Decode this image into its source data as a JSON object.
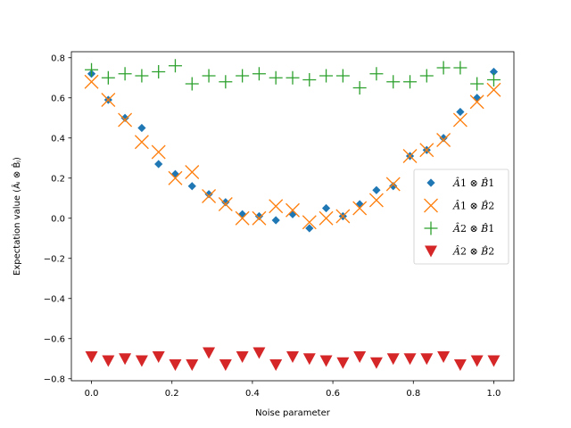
{
  "chart_data": {
    "type": "scatter",
    "title": "",
    "xlabel": "Noise parameter",
    "ylabel": "Expectation value (Âᵢ ⊗ B̂ⱼ)",
    "xlim": [
      -0.05,
      1.05
    ],
    "ylim": [
      -0.81,
      0.83
    ],
    "xticks": [
      0.0,
      0.2,
      0.4,
      0.6,
      0.8,
      1.0
    ],
    "xtick_labels": [
      "0.0",
      "0.2",
      "0.4",
      "0.6",
      "0.8",
      "1.0"
    ],
    "yticks": [
      -0.8,
      -0.6,
      -0.4,
      -0.2,
      0.0,
      0.2,
      0.4,
      0.6,
      0.8
    ],
    "ytick_labels": [
      "−0.8",
      "−0.6",
      "−0.4",
      "−0.2",
      "0.0",
      "0.2",
      "0.4",
      "0.6",
      "0.8"
    ],
    "grid": false,
    "legend_position": "center-right",
    "x": [
      0.0,
      0.0417,
      0.0833,
      0.125,
      0.1667,
      0.2083,
      0.25,
      0.2917,
      0.3333,
      0.375,
      0.4167,
      0.4583,
      0.5,
      0.5417,
      0.5833,
      0.625,
      0.6667,
      0.7083,
      0.75,
      0.7917,
      0.8333,
      0.875,
      0.9167,
      0.9583,
      1.0
    ],
    "series": [
      {
        "name": "A1⊗B1",
        "label_parts": [
          "A",
          "1",
          "⊗",
          "B",
          "1"
        ],
        "marker": "diamond",
        "color": "#1f77b4",
        "values": [
          0.72,
          0.59,
          0.5,
          0.45,
          0.27,
          0.22,
          0.16,
          0.12,
          0.08,
          0.02,
          0.01,
          -0.01,
          0.02,
          -0.05,
          0.05,
          0.01,
          0.07,
          0.14,
          0.16,
          0.31,
          0.34,
          0.4,
          0.53,
          0.6,
          0.73
        ]
      },
      {
        "name": "A1⊗B2",
        "label_parts": [
          "A",
          "1",
          "⊗",
          "B",
          "2"
        ],
        "marker": "x",
        "color": "#ff7f0e",
        "values": [
          0.68,
          0.59,
          0.49,
          0.38,
          0.33,
          0.2,
          0.23,
          0.11,
          0.07,
          0.0,
          0.0,
          0.06,
          0.04,
          -0.02,
          0.0,
          0.01,
          0.05,
          0.09,
          0.17,
          0.31,
          0.34,
          0.39,
          0.49,
          0.58,
          0.64
        ]
      },
      {
        "name": "A2⊗B1",
        "label_parts": [
          "A",
          "2",
          "⊗",
          "B",
          "1"
        ],
        "marker": "plus",
        "color": "#2ca02c",
        "values": [
          0.74,
          0.7,
          0.72,
          0.71,
          0.73,
          0.76,
          0.67,
          0.71,
          0.68,
          0.71,
          0.72,
          0.7,
          0.7,
          0.69,
          0.71,
          0.71,
          0.65,
          0.72,
          0.68,
          0.68,
          0.71,
          0.75,
          0.75,
          0.67,
          0.69
        ]
      },
      {
        "name": "A2⊗B2",
        "label_parts": [
          "A",
          "2",
          "⊗",
          "B",
          "2"
        ],
        "marker": "triangle-down",
        "color": "#d62728",
        "values": [
          -0.69,
          -0.71,
          -0.7,
          -0.71,
          -0.69,
          -0.73,
          -0.73,
          -0.67,
          -0.73,
          -0.69,
          -0.67,
          -0.73,
          -0.69,
          -0.7,
          -0.71,
          -0.72,
          -0.69,
          -0.72,
          -0.7,
          -0.7,
          -0.7,
          -0.69,
          -0.73,
          -0.71,
          -0.71
        ]
      }
    ]
  }
}
